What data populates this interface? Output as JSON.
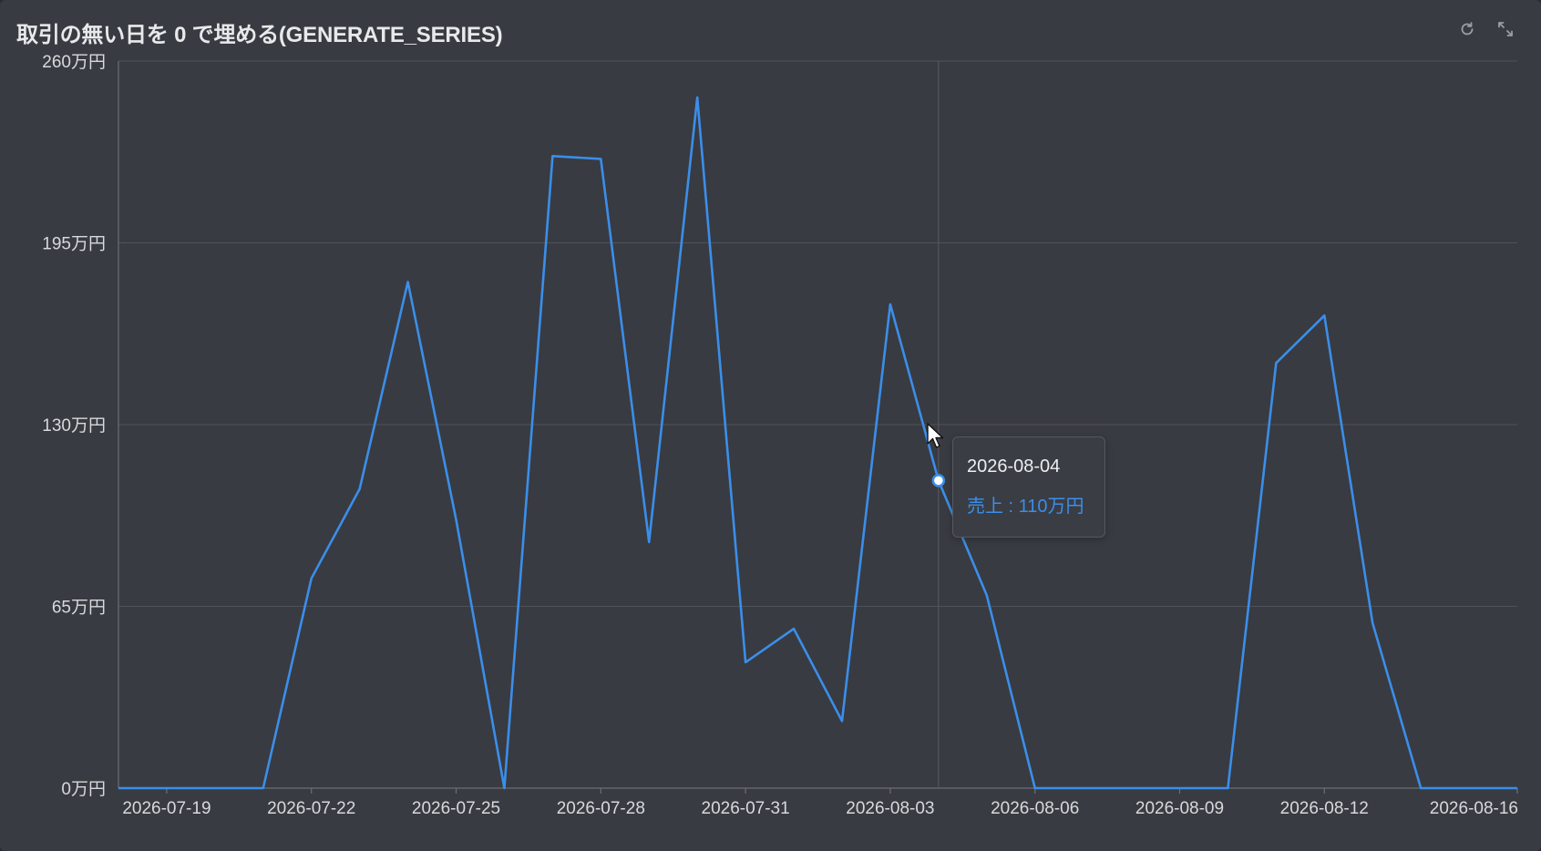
{
  "panel": {
    "title": "取引の無い日を 0 で埋める(GENERATE_SERIES)",
    "refresh_icon": "refresh-icon",
    "expand_icon": "expand-icon"
  },
  "tooltip": {
    "date": "2026-08-04",
    "label": "売上",
    "value": "110万円",
    "text": "売上 : 110万円"
  },
  "colors": {
    "background": "#383b41",
    "line": "#3b8eea",
    "grid": "#4f5258",
    "text": "#d7d9dc"
  },
  "chart_data": {
    "type": "line",
    "title": "取引の無い日を 0 で埋める(GENERATE_SERIES)",
    "xlabel": "",
    "ylabel": "",
    "x_start_date": "2026-07-18",
    "x": [
      "2026-07-18",
      "2026-07-19",
      "2026-07-20",
      "2026-07-21",
      "2026-07-22",
      "2026-07-23",
      "2026-07-24",
      "2026-07-25",
      "2026-07-26",
      "2026-07-27",
      "2026-07-28",
      "2026-07-29",
      "2026-07-30",
      "2026-07-31",
      "2026-08-01",
      "2026-08-02",
      "2026-08-03",
      "2026-08-04",
      "2026-08-05",
      "2026-08-06",
      "2026-08-07",
      "2026-08-08",
      "2026-08-09",
      "2026-08-10",
      "2026-08-11",
      "2026-08-12",
      "2026-08-13",
      "2026-08-14",
      "2026-08-15",
      "2026-08-16"
    ],
    "series": [
      {
        "name": "売上",
        "unit": "万円",
        "values": [
          0,
          0,
          0,
          0,
          75,
          107,
          181,
          96,
          0,
          226,
          225,
          88,
          247,
          45,
          57,
          24,
          173,
          110,
          69,
          0,
          0,
          0,
          0,
          0,
          152,
          169,
          59,
          0,
          0,
          0
        ]
      }
    ],
    "ylim": [
      0,
      260
    ],
    "yticks": [
      0,
      65,
      130,
      195,
      260
    ],
    "ytick_labels": [
      "0万円",
      "65万円",
      "130万円",
      "195万円",
      "260万円"
    ],
    "xtick_labels": [
      "2026-07-19",
      "2026-07-22",
      "2026-07-25",
      "2026-07-28",
      "2026-07-31",
      "2026-08-03",
      "2026-08-06",
      "2026-08-09",
      "2026-08-12",
      "2026-08-16"
    ],
    "xtick_dates": [
      "2026-07-19",
      "2026-07-22",
      "2026-07-25",
      "2026-07-28",
      "2026-07-31",
      "2026-08-03",
      "2026-08-06",
      "2026-08-09",
      "2026-08-12",
      "2026-08-16"
    ],
    "highlight": {
      "x": "2026-08-04",
      "y": 110
    },
    "grid": true,
    "legend": "none"
  }
}
